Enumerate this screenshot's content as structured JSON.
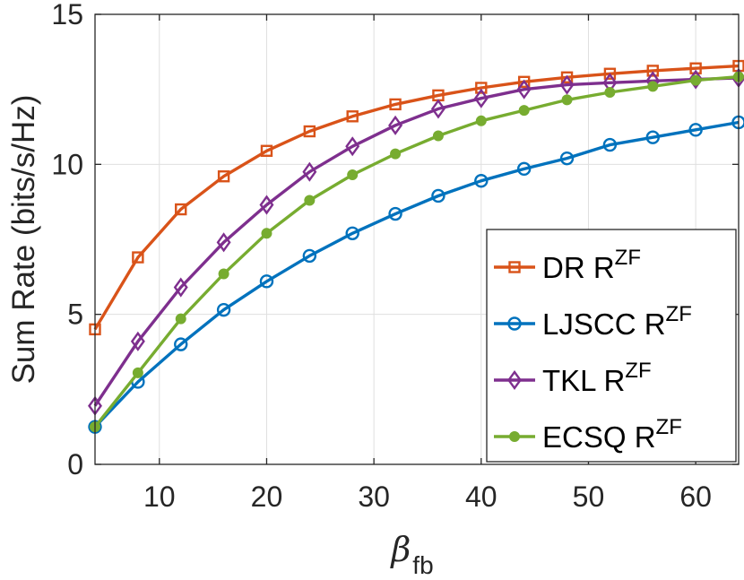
{
  "chart_data": {
    "type": "line",
    "title": "",
    "xlabel": {
      "symbol": "β",
      "subscript": "fb"
    },
    "ylabel": "Sum Rate (bits/s/Hz)",
    "xlim": [
      4,
      64
    ],
    "ylim": [
      0,
      15
    ],
    "xticks": [
      10,
      20,
      30,
      40,
      50,
      60
    ],
    "yticks": [
      0,
      5,
      10,
      15
    ],
    "grid": true,
    "legend_position": "bottom-right",
    "x": [
      4,
      8,
      12,
      16,
      20,
      24,
      28,
      32,
      36,
      40,
      44,
      48,
      52,
      56,
      60,
      64
    ],
    "series": [
      {
        "name": "DR R",
        "superscript": "ZF",
        "color": "#d95319",
        "marker": "square",
        "values": [
          4.5,
          6.9,
          8.5,
          9.6,
          10.45,
          11.1,
          11.6,
          12.0,
          12.3,
          12.55,
          12.75,
          12.9,
          13.02,
          13.12,
          13.2,
          13.28
        ]
      },
      {
        "name": "LJSCC R",
        "superscript": "ZF",
        "color": "#0072bd",
        "marker": "circle",
        "values": [
          1.25,
          2.75,
          4.0,
          5.15,
          6.1,
          6.95,
          7.7,
          8.35,
          8.95,
          9.45,
          9.85,
          10.2,
          10.65,
          10.9,
          11.15,
          11.4
        ]
      },
      {
        "name": "TKL R",
        "superscript": "ZF",
        "color": "#7e2f8e",
        "marker": "diamond",
        "values": [
          1.95,
          4.1,
          5.9,
          7.4,
          8.65,
          9.75,
          10.6,
          11.3,
          11.85,
          12.2,
          12.5,
          12.65,
          12.72,
          12.78,
          12.83,
          12.88
        ]
      },
      {
        "name": "ECSQ R",
        "superscript": "ZF",
        "color": "#77ac30",
        "marker": "dot",
        "values": [
          1.25,
          3.05,
          4.85,
          6.35,
          7.7,
          8.8,
          9.65,
          10.35,
          10.95,
          11.45,
          11.8,
          12.15,
          12.4,
          12.6,
          12.8,
          12.92
        ]
      }
    ]
  }
}
